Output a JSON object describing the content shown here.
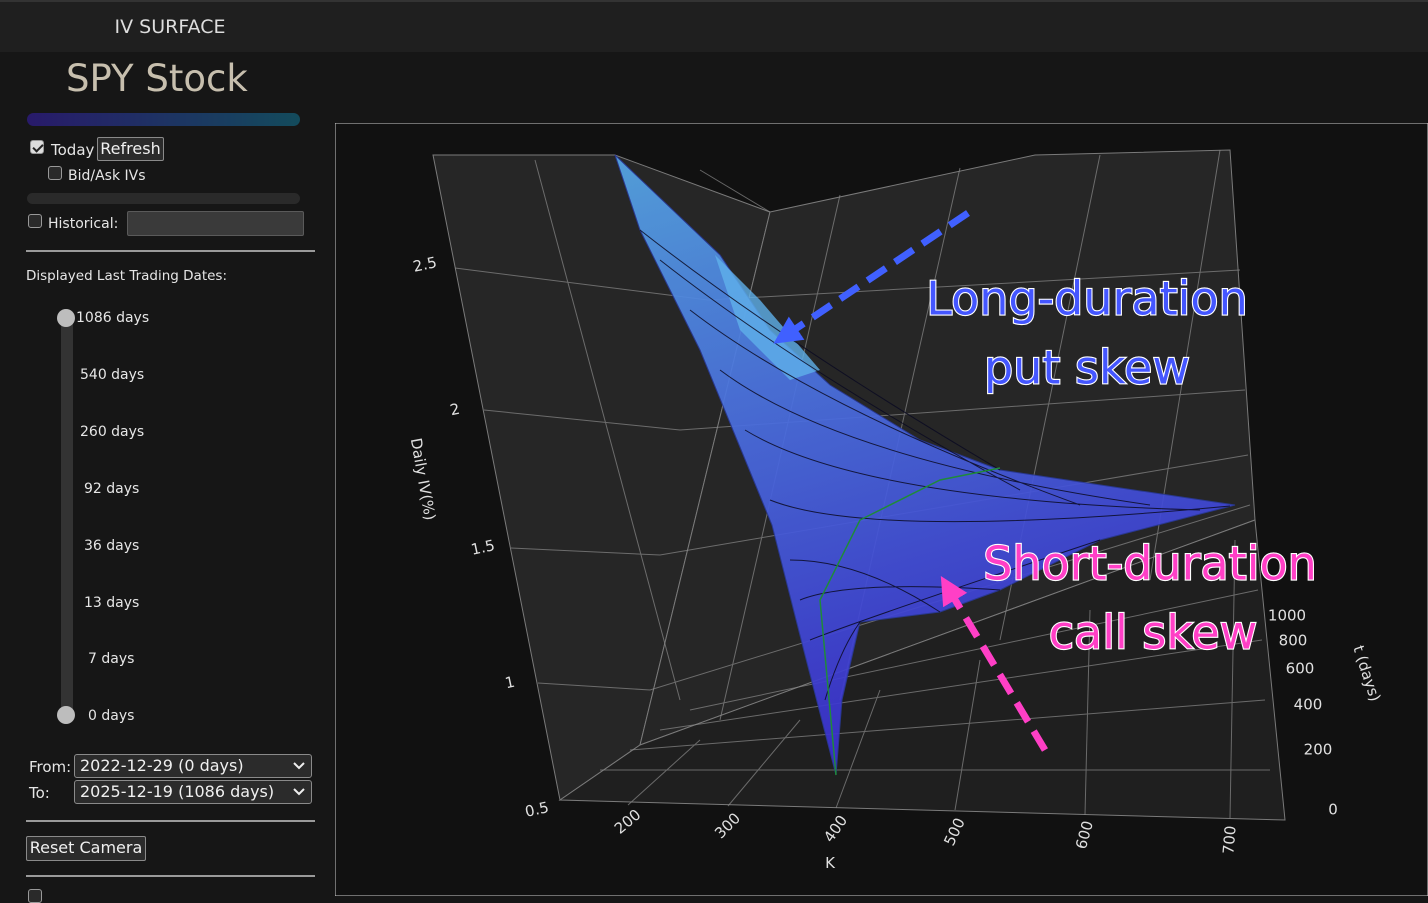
{
  "header": {
    "title": "IV SURFACE"
  },
  "sidebar": {
    "ticker": "SPY Stock",
    "today": {
      "label": "Today",
      "checked": true
    },
    "refresh": "Refresh",
    "bid_ask": {
      "label": "Bid/Ask IVs",
      "checked": false
    },
    "historical": {
      "label": "Historical:",
      "checked": false
    },
    "dates_title": "Displayed Last Trading Dates:",
    "date_ticks": [
      "1086 days",
      "540 days",
      "260 days",
      "92 days",
      "36 days",
      "13 days",
      "7 days",
      "0 days"
    ],
    "from": {
      "label": "From:",
      "value": "2022-12-29 (0 days)"
    },
    "to": {
      "label": "To:",
      "value": "2025-12-19 (1086 days)"
    },
    "reset_camera": "Reset Camera"
  },
  "plot": {
    "z_title": "Daily IV(%)",
    "z_ticks": [
      2.5,
      2,
      1.5,
      1,
      0.5
    ],
    "x_title": "K",
    "x_ticks": [
      200,
      300,
      400,
      500,
      600,
      700
    ],
    "y_title": "t (days)",
    "y_ticks": [
      1000,
      800,
      600,
      400,
      200,
      0
    ],
    "annotations": [
      {
        "lines": [
          "Long-duration",
          "put skew"
        ]
      },
      {
        "lines": [
          "Short-duration",
          "call skew"
        ]
      }
    ]
  }
}
